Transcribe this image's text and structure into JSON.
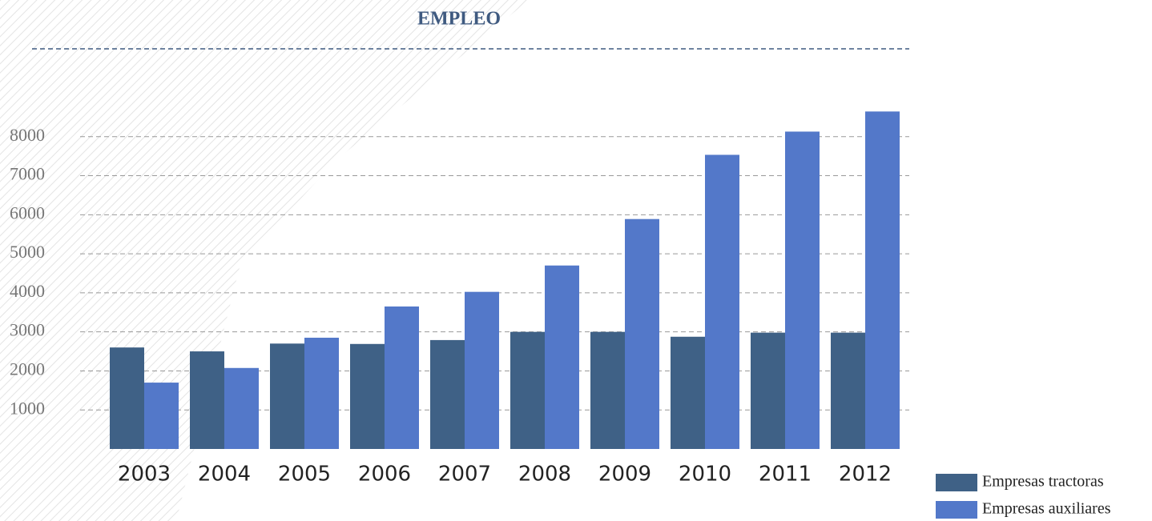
{
  "chart_data": {
    "type": "bar",
    "title": "EMPLEO",
    "categories": [
      "2003",
      "2004",
      "2005",
      "2006",
      "2007",
      "2008",
      "2009",
      "2010",
      "2011",
      "2012"
    ],
    "series": [
      {
        "name": "Empresas tractoras",
        "color": "#3f6186",
        "values": [
          2600,
          2500,
          2700,
          2690,
          2790,
          3000,
          3000,
          2875,
          2980,
          2980
        ]
      },
      {
        "name": "Empresas auxiliares",
        "color": "#5378c9",
        "values": [
          1700,
          2075,
          2850,
          3650,
          4025,
          4700,
          5890,
          7535,
          8130,
          8645
        ]
      }
    ],
    "ylim": [
      0,
      9000
    ],
    "yticks": [
      1000,
      2000,
      3000,
      4000,
      5000,
      6000,
      7000,
      8000
    ],
    "grid": true,
    "legend": "bottom-right"
  }
}
